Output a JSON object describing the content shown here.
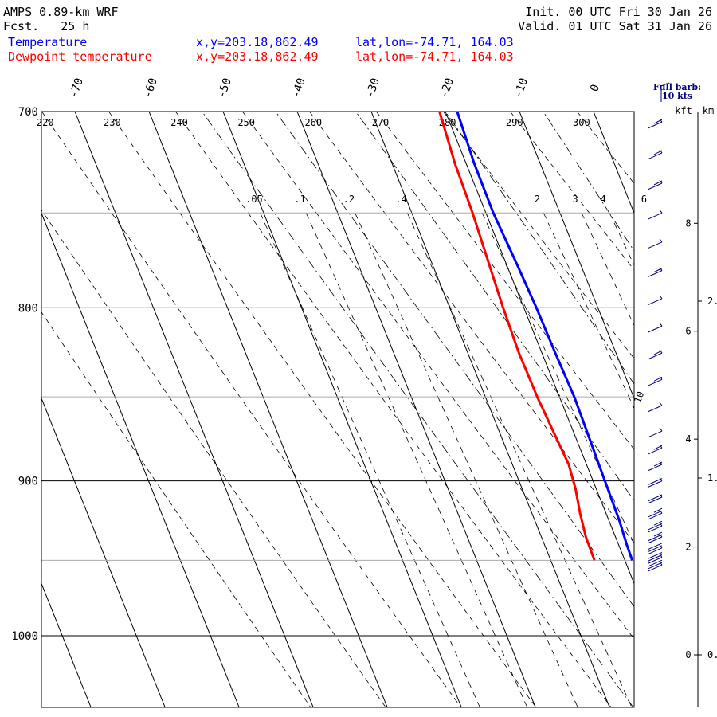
{
  "header": {
    "model": "AMPS 0.89-km WRF",
    "fcst": "Fcst.   25 h",
    "init": "Init. 00 UTC Fri 30 Jan 26",
    "valid": "Valid. 01 UTC Sat 31 Jan 26",
    "temp_label": "Temperature",
    "dew_label": "Dewpoint temperature",
    "xy_text": "x,y=203.18,862.49",
    "latlon_text": "lat,lon=-74.71, 164.03"
  },
  "barb_legend": {
    "line1": "Full barb:",
    "line2": "10 kts"
  },
  "height_units": {
    "kft": "kft",
    "km": "km"
  },
  "colors": {
    "temperature": "#0000ff",
    "dewpoint": "#ff0000",
    "barbs": "#000080",
    "grid": "#000000",
    "subgrid": "#aaaaaa"
  },
  "chart_data": {
    "type": "line",
    "chart_kind": "skew-T log-P sounding",
    "y_axis": {
      "label": "",
      "scale": "log",
      "range": [
        700,
        1040
      ],
      "ticks": [
        700,
        800,
        900,
        1000
      ]
    },
    "temperature_ticks": [
      "-70",
      "-60",
      "-50",
      "-40",
      "-30",
      "-20",
      "-10",
      "0"
    ],
    "dry_adiabat_labels": [
      "220",
      "230",
      "240",
      "250",
      "260",
      "270",
      "280",
      "290",
      "300"
    ],
    "mixing_ratio_labels": [
      ".05",
      ".1",
      ".2",
      ".4",
      "2",
      "3",
      "4",
      "6"
    ],
    "extra_label": "10",
    "series": [
      {
        "name": "Temperature",
        "color": "#0000ff",
        "points": [
          [
            700,
            -18.4
          ],
          [
            725,
            -18.9
          ],
          [
            750,
            -19.0
          ],
          [
            775,
            -18.6
          ],
          [
            800,
            -18.3
          ],
          [
            825,
            -18.2
          ],
          [
            850,
            -18.0
          ],
          [
            875,
            -18.2
          ],
          [
            900,
            -18.4
          ],
          [
            925,
            -18.6
          ],
          [
            940,
            -18.9
          ],
          [
            950,
            -19.0
          ]
        ]
      },
      {
        "name": "Dewpoint temperature",
        "color": "#ff0000",
        "points": [
          [
            700,
            -20.8
          ],
          [
            725,
            -21.5
          ],
          [
            750,
            -21.8
          ],
          [
            775,
            -22.3
          ],
          [
            800,
            -22.8
          ],
          [
            825,
            -23.1
          ],
          [
            850,
            -23.0
          ],
          [
            870,
            -22.7
          ],
          [
            890,
            -22.4
          ],
          [
            905,
            -22.8
          ],
          [
            920,
            -23.5
          ],
          [
            935,
            -24.0
          ],
          [
            950,
            -24.1
          ]
        ]
      }
    ]
  },
  "height_scale": {
    "kft": [
      {
        "label": "8",
        "km": 2.44
      },
      {
        "label": "6",
        "km": 1.83
      },
      {
        "label": "4",
        "km": 1.22
      },
      {
        "label": "2",
        "km": 0.61
      },
      {
        "label": "0",
        "km": 0
      }
    ],
    "km": [
      {
        "label": "2.",
        "km": 2
      },
      {
        "label": "1.",
        "km": 1
      },
      {
        "label": "0.",
        "km": 0
      }
    ]
  },
  "wind_barbs": [
    {
      "p": 705,
      "speed": 15
    },
    {
      "p": 720,
      "speed": 15
    },
    {
      "p": 735,
      "speed": 15
    },
    {
      "p": 750,
      "speed": 10
    },
    {
      "p": 765,
      "speed": 10
    },
    {
      "p": 780,
      "speed": 15
    },
    {
      "p": 795,
      "speed": 10
    },
    {
      "p": 810,
      "speed": 10
    },
    {
      "p": 825,
      "speed": 15
    },
    {
      "p": 840,
      "speed": 15
    },
    {
      "p": 855,
      "speed": 10
    },
    {
      "p": 870,
      "speed": 10
    },
    {
      "p": 880,
      "speed": 15
    },
    {
      "p": 890,
      "speed": 15
    },
    {
      "p": 900,
      "speed": 20
    },
    {
      "p": 910,
      "speed": 20
    },
    {
      "p": 920,
      "speed": 25
    },
    {
      "p": 928,
      "speed": 25
    },
    {
      "p": 935,
      "speed": 25
    },
    {
      "p": 942,
      "speed": 30
    },
    {
      "p": 948,
      "speed": 30
    },
    {
      "p": 953,
      "speed": 30
    }
  ]
}
